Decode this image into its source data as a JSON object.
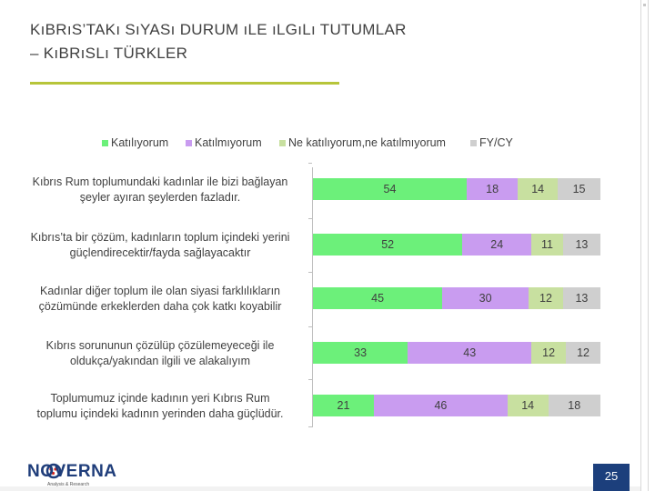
{
  "title": {
    "line1": "KıBRıS’TAKı SıYASı DURUM ıLE ıLGıLı TUTUMLAR",
    "line2": "– KıBRıSLı TÜRKLER"
  },
  "colors": {
    "katiliyorum": "#6cf07a",
    "katilmiyorum": "#c99cf0",
    "ne": "#c8e0a0",
    "fy": "#cfcfcf",
    "title_rule": "#b7c53a",
    "logo_blue": "#1f3d7a",
    "logo_dots": "#d7261e",
    "page_box": "#1c3f7c"
  },
  "chart_data": {
    "type": "bar",
    "orientation": "horizontal",
    "stacked": true,
    "percent": true,
    "legend_position": "top",
    "grid": false,
    "series": [
      {
        "name": "Katılıyorum",
        "color_key": "katiliyorum",
        "values": [
          54,
          52,
          45,
          33,
          21
        ]
      },
      {
        "name": "Katılmıyorum",
        "color_key": "katilmiyorum",
        "values": [
          18,
          24,
          30,
          43,
          46
        ]
      },
      {
        "name": "Ne katılıyorum,ne katılmıyorum",
        "color_key": "ne",
        "values": [
          14,
          11,
          12,
          12,
          14
        ]
      },
      {
        "name": "FY/CY",
        "color_key": "fy",
        "values": [
          15,
          13,
          13,
          12,
          18
        ]
      }
    ],
    "categories": [
      {
        "line1": "Kıbrıs Rum toplumundaki kadınlar ile bizi bağlayan",
        "line2": "şeyler ayıran şeylerden fazladır."
      },
      {
        "line1": "Kıbrıs’ta bir çözüm, kadınların toplum içindeki yerini",
        "line2": "güçlendirecektir/fayda sağlayacaktır"
      },
      {
        "line1": "Kadınlar diğer toplum ile olan siyasi farklılıkların",
        "line2": "çözümünde erkeklerden daha çok katkı koyabilir"
      },
      {
        "line1": "Kıbrıs sorununun çözülüp çözülemeyeceği ile",
        "line2": "oldukça/yakından ilgili ve alakalıyım"
      },
      {
        "line1": "Toplumumuz içinde kadının yeri Kıbrıs Rum",
        "line2": "toplumu içindeki kadının yerinden daha güçlüdür."
      }
    ]
  },
  "logo": {
    "text": "NOVERNA",
    "subtitle": "Analysis & Research"
  },
  "page_number": "25"
}
